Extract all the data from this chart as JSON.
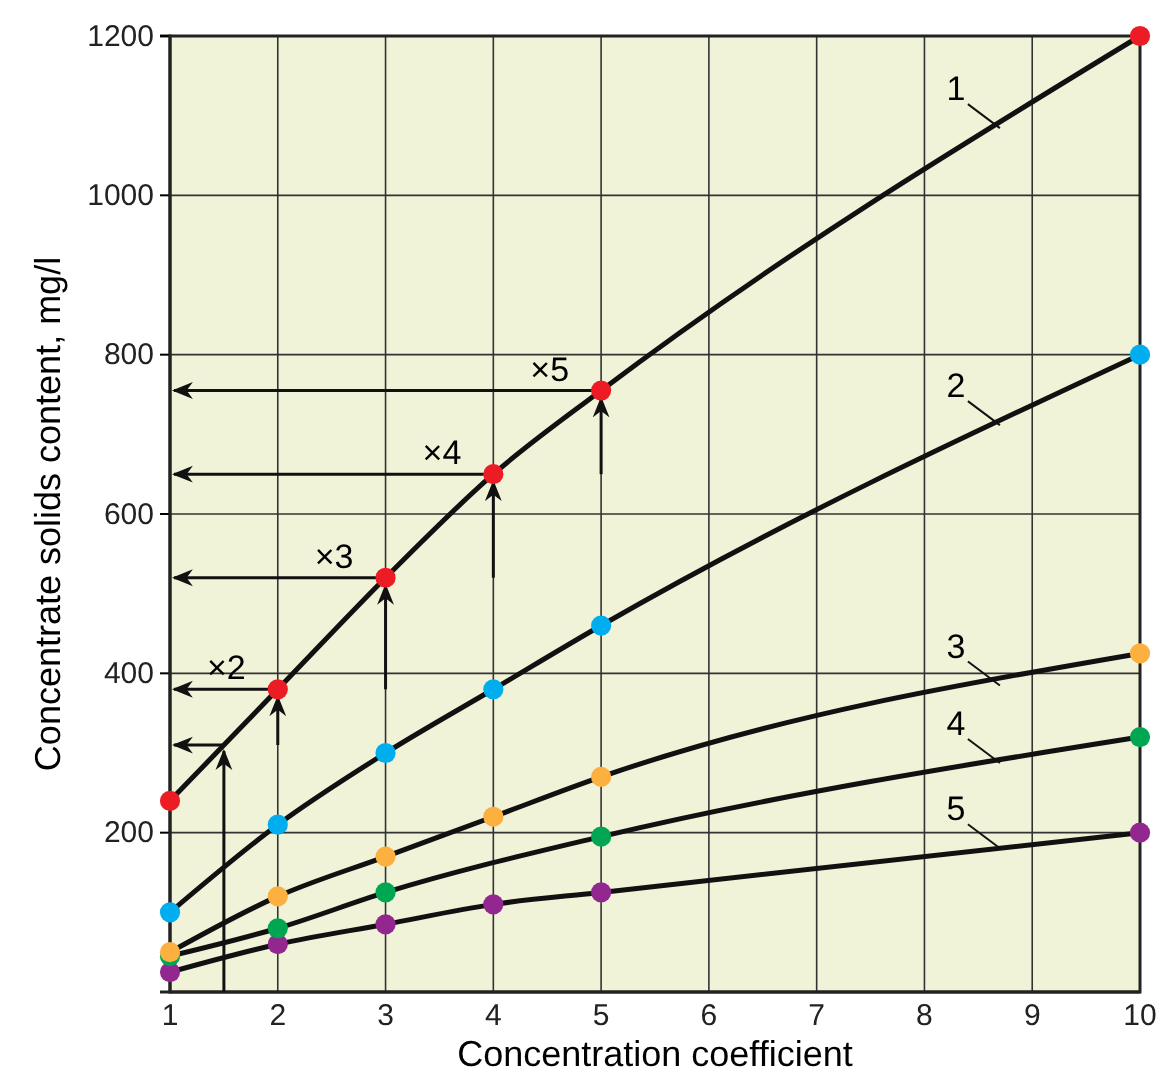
{
  "chart_data": {
    "type": "line",
    "xlabel": "Concentration coefficient",
    "ylabel": "Concentrate solids content, mg/l",
    "x": [
      1,
      2,
      3,
      4,
      5,
      10
    ],
    "series": [
      {
        "name": "1",
        "color": "#ed1c24",
        "values": [
          240,
          380,
          520,
          650,
          755,
          1200
        ]
      },
      {
        "name": "2",
        "color": "#00aeef",
        "values": [
          100,
          210,
          300,
          380,
          460,
          800
        ]
      },
      {
        "name": "3",
        "color": "#fbb040",
        "values": [
          50,
          120,
          170,
          220,
          270,
          425
        ]
      },
      {
        "name": "4",
        "color": "#00a651",
        "x": [
          1,
          2,
          3,
          5,
          10
        ],
        "values": [
          45,
          80,
          125,
          195,
          320
        ]
      },
      {
        "name": "5",
        "color": "#92278f",
        "values": [
          25,
          60,
          85,
          110,
          125,
          200
        ]
      }
    ],
    "xlim": [
      1,
      10
    ],
    "xticks": [
      1,
      2,
      3,
      4,
      5,
      6,
      7,
      8,
      9,
      10
    ],
    "ylim": [
      0,
      1200
    ],
    "yticks": [
      200,
      400,
      600,
      800,
      1000,
      1200
    ],
    "grid": true,
    "legend": "right",
    "marker": "circle",
    "line_style": "solid",
    "annotations": [
      {
        "text": "×2",
        "x": 2,
        "y": 380
      },
      {
        "text": "×3",
        "x": 3,
        "y": 520
      },
      {
        "text": "×4",
        "x": 4,
        "y": 650
      },
      {
        "text": "×5",
        "x": 5,
        "y": 755
      }
    ]
  }
}
